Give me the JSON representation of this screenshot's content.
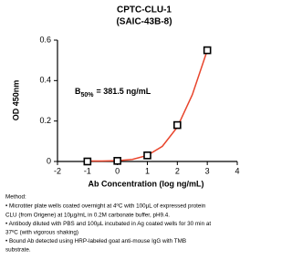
{
  "chart_data": {
    "type": "scatter",
    "title": "CPTC-CLU-1",
    "subtitle": "(SAIC-43B-8)",
    "x_label": "Ab Concentration (log ng/mL)",
    "y_label": "OD 450nm",
    "x": [
      -1,
      0,
      1,
      2,
      3
    ],
    "values": [
      0.0,
      0.003,
      0.03,
      0.18,
      0.55
    ],
    "color": "#000000",
    "curve": {
      "color": "#e8452c",
      "x": [
        -1,
        -0.5,
        0,
        0.5,
        1,
        1.5,
        2,
        2.5,
        3
      ],
      "values": [
        0.002,
        0.002,
        0.004,
        0.01,
        0.03,
        0.075,
        0.17,
        0.33,
        0.55
      ]
    },
    "xlim": [
      -2,
      4
    ],
    "ylim": [
      0,
      0.6
    ],
    "xticks": [
      -2,
      -1,
      0,
      1,
      2,
      3,
      4
    ],
    "yticks": [
      0,
      0.2,
      0.4,
      0.6
    ],
    "annotation": {
      "main": "B",
      "subscript": "50%",
      "rest": "= 381.5 ng/mL"
    }
  },
  "method": {
    "title": "Method:",
    "lines": [
      "• Microtiter plate wells coated overnight at 4ºC  with 100µL of expressed protein",
      "CLU (from Origene) at 10µg/mL in 0.2M carbonate buffer, pH9.4.",
      "• Antibody diluted with PBS and 100µL incubated in Ag coated wells for 30 min at",
      "37ºC (with vigorous shaking)",
      "• Bound Ab detected using HRP-labeled goat anti-mouse IgG with TMB",
      "substrate."
    ]
  }
}
